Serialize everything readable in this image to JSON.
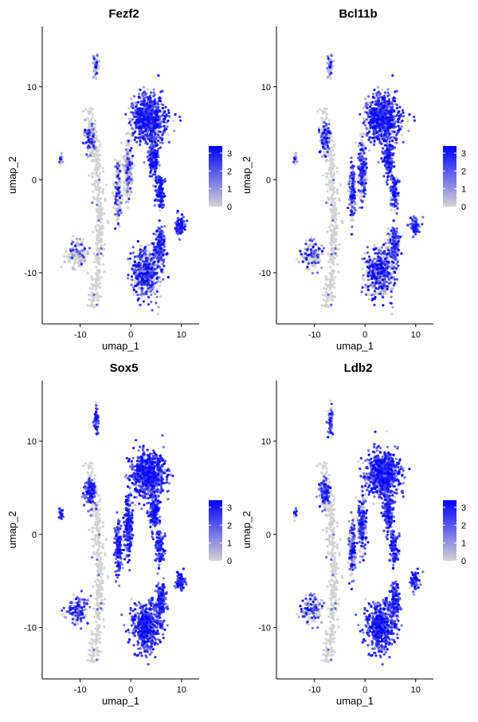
{
  "chart_data": {
    "type": "scatter",
    "subtype": "umap-feature-plot",
    "xlabel": "umap_1",
    "ylabel": "umap_2",
    "x_ticks": [
      "-10",
      "0",
      "10"
    ],
    "y_ticks": [
      "10",
      "0",
      "-10"
    ],
    "x_tick_values": [
      -10,
      0,
      10
    ],
    "y_tick_values": [
      10,
      0,
      -10
    ],
    "xlim": [
      -17.5,
      13.5
    ],
    "ylim": [
      -15.5,
      16.5
    ],
    "color_low": "#d3d3d3",
    "color_high": "#0000ff",
    "panels": [
      {
        "title": "Fezf2",
        "colorbar_ticks": [
          "3",
          "2",
          "1",
          "0"
        ],
        "colorbar_values": [
          3,
          2,
          1,
          0
        ],
        "expression_range": [
          0,
          3.4
        ],
        "high_regions": [
          "upper right cluster edge",
          "right-middle clusters",
          "lower right cluster"
        ]
      },
      {
        "title": "Bcl11b",
        "colorbar_ticks": [
          "3",
          "2",
          "1",
          "0"
        ],
        "colorbar_values": [
          3,
          2,
          1,
          0
        ],
        "expression_range": [
          0,
          3.4
        ],
        "high_regions": [
          "top right cluster",
          "middle clusters",
          "right-middle clusters"
        ]
      },
      {
        "title": "Sox5",
        "colorbar_ticks": [
          "3",
          "2",
          "1",
          "0"
        ],
        "colorbar_values": [
          3,
          2,
          1,
          0
        ],
        "expression_range": [
          0,
          3.4
        ],
        "high_regions": [
          "most clusters",
          "top right cluster",
          "lower clusters"
        ]
      },
      {
        "title": "Ldb2",
        "colorbar_ticks": [
          "3",
          "2",
          "1",
          "0"
        ],
        "colorbar_values": [
          3,
          2,
          1,
          0
        ],
        "expression_range": [
          0,
          3.4
        ],
        "high_regions": [
          "top right cluster",
          "right-middle clusters",
          "lower right cluster"
        ]
      }
    ]
  }
}
